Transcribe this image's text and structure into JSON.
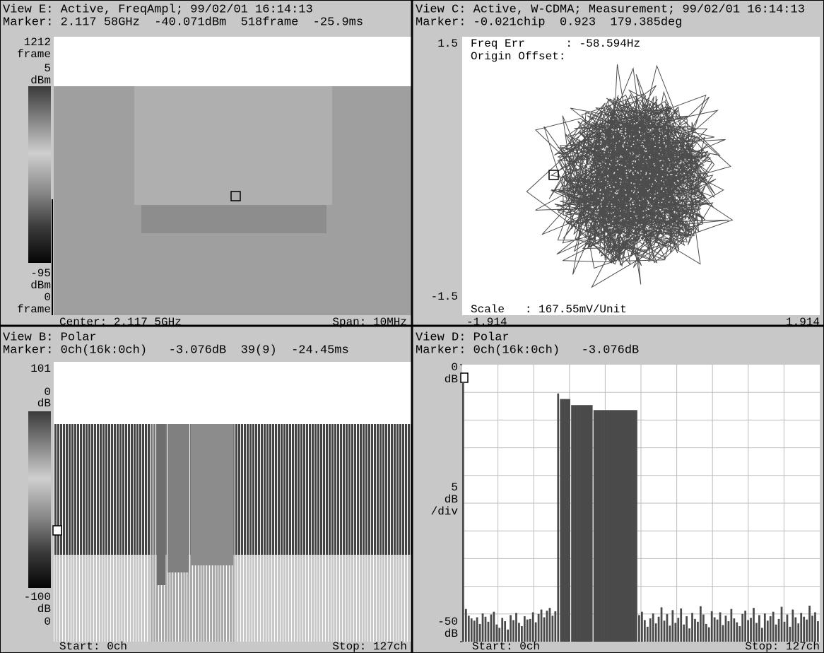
{
  "views": [
    {
      "header": "View E: Active, FreqAmpl; 99/02/01 16:14:13",
      "marker": "Marker: 2.117 58GHz  -40.071dBm  518frame  -25.9ms",
      "axis_labels": [
        "1212",
        "frame",
        "5",
        "dBm",
        "-95",
        "dBm",
        "0",
        "frame"
      ],
      "footer_left": "Center: 2.117 5GHz",
      "footer_right": "Span: 10MHz"
    },
    {
      "header": "View C: Active, W-CDMA; Measurement; 99/02/01 16:14:13",
      "marker": "Marker: -0.021chip  0.923  179.385deg",
      "axis_labels": [
        "1.5",
        "-1.5"
      ],
      "annotations": [
        "Freq Err      : -58.594Hz",
        "Origin Offset:",
        "Scale   : 167.55mV/Unit"
      ],
      "footer_left": "-1.914",
      "footer_right": "1.914"
    },
    {
      "header": "View B: Polar",
      "marker": "Marker: 0ch(16k:0ch)   -3.076dB  39(9)  -24.45ms",
      "axis_labels": [
        "101",
        "0",
        "dB",
        "-100",
        "dB",
        "0"
      ],
      "footer_left": "Start: 0ch",
      "footer_right": "Stop: 127ch"
    },
    {
      "header": "View D: Polar",
      "marker": "Marker: 0ch(16k:0ch)   -3.076dB",
      "axis_labels": [
        "dB",
        "5",
        "dB",
        "/div",
        "dB"
      ],
      "footer_left": "Start: 0ch",
      "footer_right": "Stop: 127ch",
      "chart": {
        "type": "bar",
        "color": "#4a4a4a",
        "ylim": [
          -50,
          0
        ],
        "yticks": [
          0,
          -50
        ],
        "values": [
          -3.076,
          -44.1,
          -45.3,
          -45.8,
          -46.2,
          -45.6,
          -46.8,
          -44.9,
          -45.5,
          -46.4,
          -45.1,
          -44.6,
          -46.9,
          -47.5,
          -45.7,
          -46.3,
          -47.8,
          -45.2,
          -46.1,
          -44.8,
          -46.6,
          -47.2,
          -45.4,
          -46.0,
          -45.9,
          -44.7,
          -46.5,
          -45.0,
          -44.2,
          -45.6,
          -44.4,
          -43.9,
          -45.3,
          -44.5,
          -5.2,
          -6.2,
          -6.2,
          -6.2,
          -6.2,
          -7.3,
          -7.3,
          -7.3,
          -7.3,
          -7.3,
          -7.3,
          -7.3,
          -7.3,
          -8.2,
          -8.2,
          -8.2,
          -8.2,
          -8.2,
          -8.2,
          -8.2,
          -8.2,
          -8.2,
          -8.2,
          -8.2,
          -8.2,
          -8.2,
          -8.2,
          -8.2,
          -8.2,
          -45.2,
          -44.6,
          -46.1,
          -47.3,
          -45.8,
          -44.9,
          -46.7,
          -45.5,
          -43.8,
          -46.2,
          -45.0,
          -47.1,
          -44.3,
          -46.6,
          -45.7,
          -44.0,
          -46.9,
          -45.4,
          -47.6,
          -44.8,
          -45.9,
          -46.4,
          -43.6,
          -45.1,
          -46.8,
          -47.4,
          -44.5,
          -45.6,
          -46.0,
          -44.7,
          -47.0,
          -45.3,
          -46.3,
          -44.1,
          -45.8,
          -46.5,
          -47.2,
          -45.0,
          -44.4,
          -46.1,
          -45.7,
          -43.9,
          -46.6,
          -45.2,
          -47.5,
          -44.9,
          -46.2,
          -45.4,
          -44.6,
          -46.9,
          -45.9,
          -43.7,
          -46.4,
          -45.1,
          -47.3,
          -44.2,
          -45.6,
          -46.7,
          -44.8,
          -45.5,
          -46.0,
          -43.5,
          -45.3,
          -44.7,
          -46.3
        ]
      }
    }
  ]
}
